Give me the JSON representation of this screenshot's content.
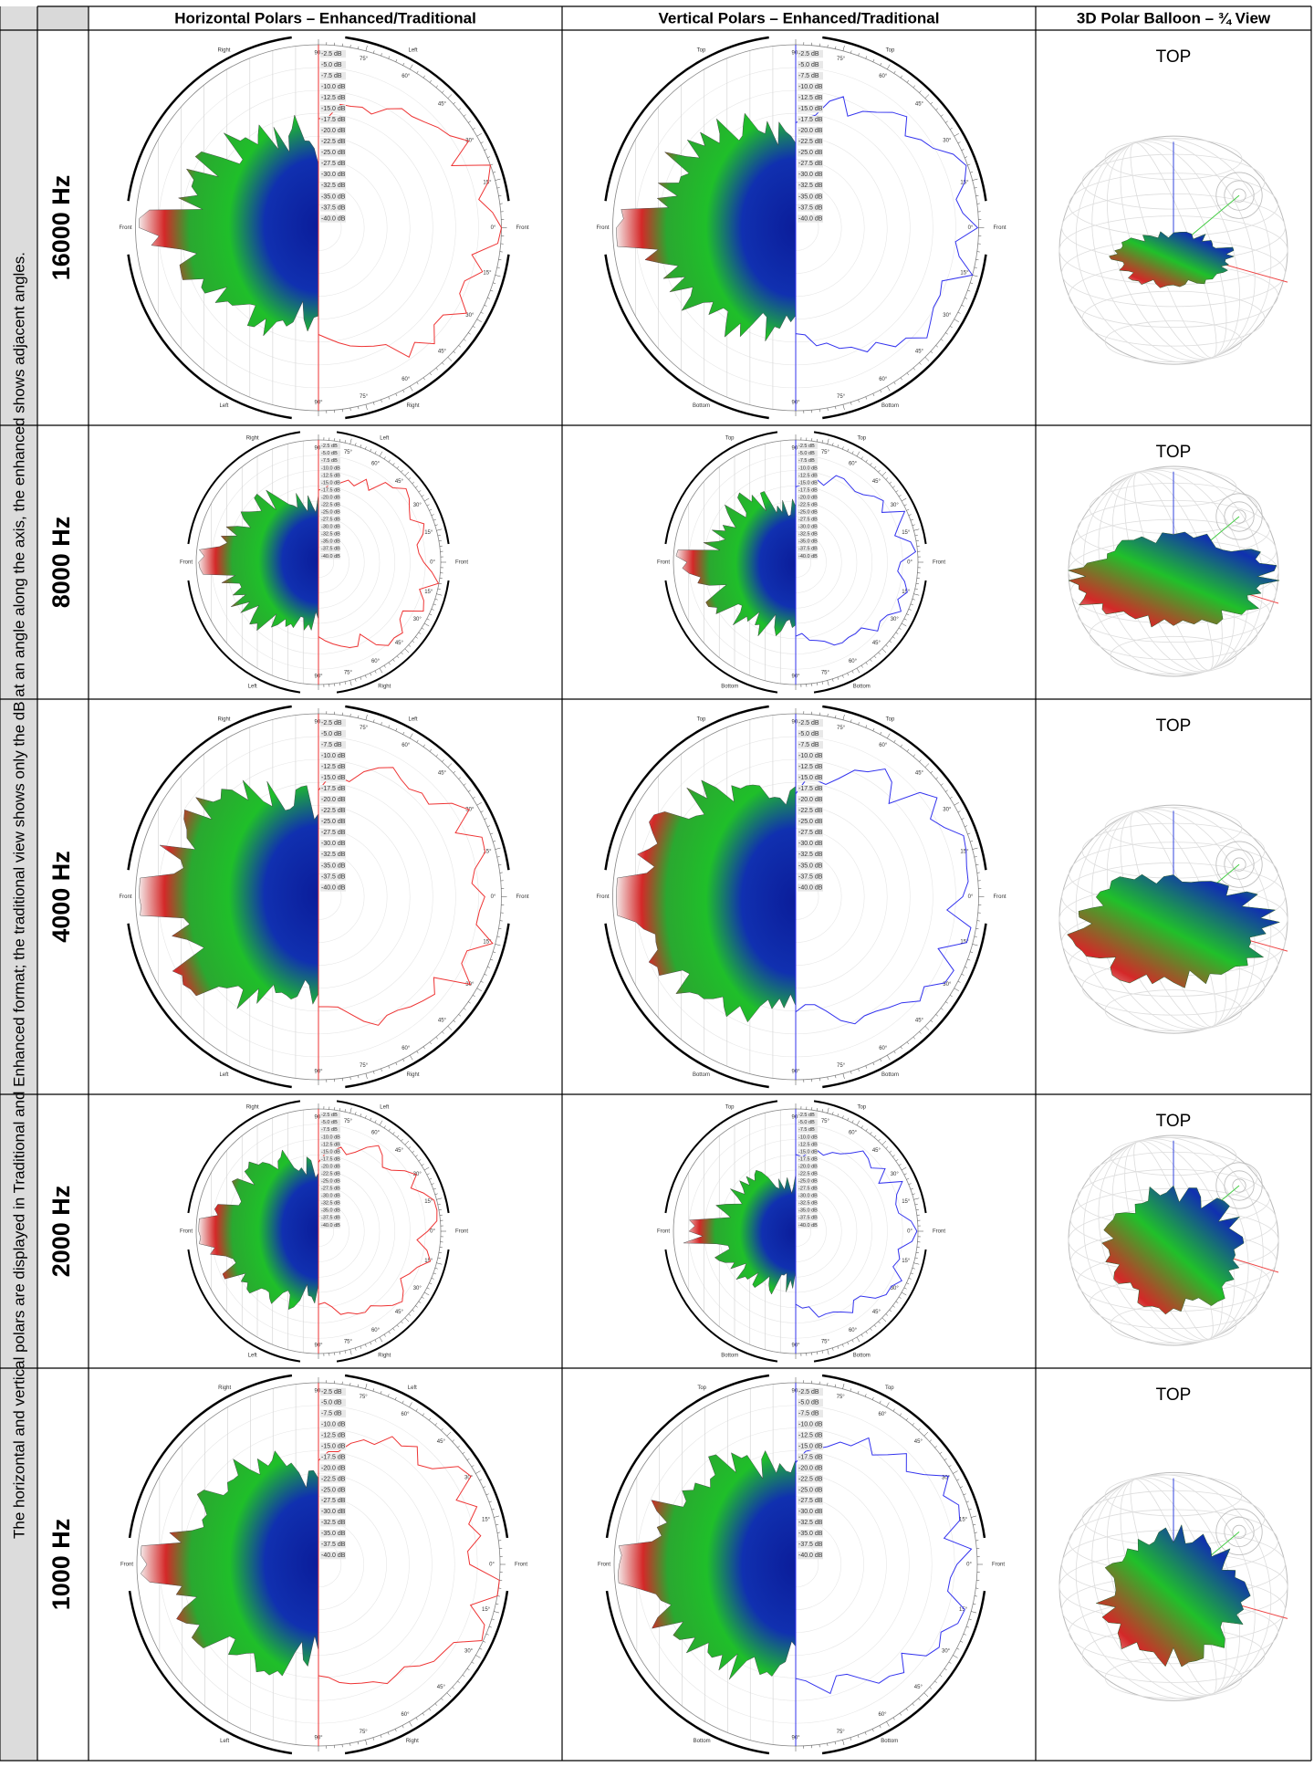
{
  "columns": [
    "Horizontal Polars – Enhanced/Traditional",
    "Vertical Polars – Enhanced/Traditional",
    "3D Polar Balloon – ¾ View"
  ],
  "caption": "The horizontal and vertical polars are displayed in Traditional and Enhanced format; the traditional view shows only the dB at an angle along the axis, the enhanced shows adjacent angles.",
  "rows": [
    {
      "frequency": "16000 Hz",
      "balloon_label": "TOP"
    },
    {
      "frequency": "8000 Hz",
      "balloon_label": "TOP"
    },
    {
      "frequency": "4000 Hz",
      "balloon_label": "TOP"
    },
    {
      "frequency": "2000 Hz",
      "balloon_label": "TOP"
    },
    {
      "frequency": "1000 Hz",
      "balloon_label": "TOP"
    }
  ],
  "polar_labels": {
    "front": "Front",
    "horizontal_sides": [
      "Right",
      "Left"
    ],
    "vertical_sides": [
      "Top",
      "Bottom"
    ],
    "angles": [
      "90°",
      "75°",
      "60°",
      "45°",
      "30°",
      "15°",
      "0°"
    ],
    "db_scale": [
      "-2.5 dB",
      "-5.0 dB",
      "-7.5 dB",
      "-10.0 dB",
      "-12.5 dB",
      "-15.0 dB",
      "-17.5 dB",
      "-20.0 dB",
      "-22.5 dB",
      "-25.0 dB",
      "-27.5 dB",
      "-30.0 dB",
      "-32.5 dB",
      "-35.0 dB",
      "-37.5 dB",
      "-40.0 dB"
    ]
  }
}
